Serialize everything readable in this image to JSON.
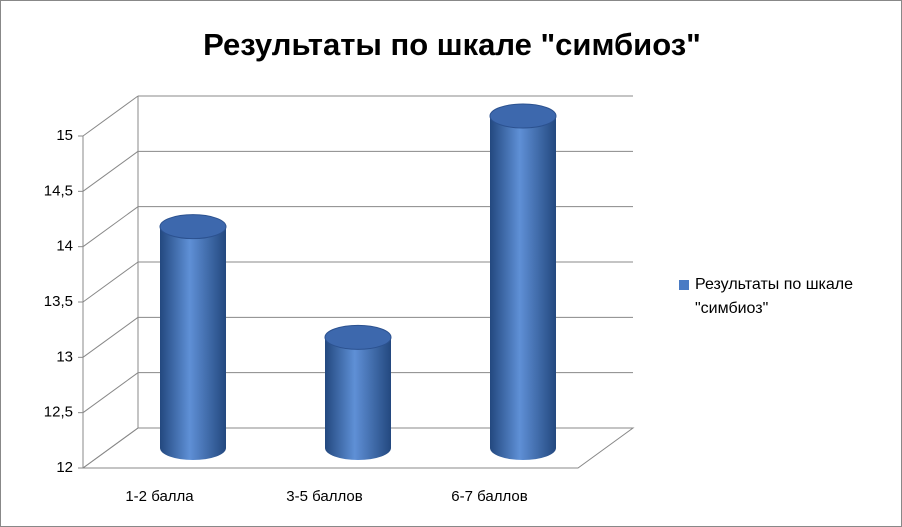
{
  "chart_data": {
    "type": "bar3d",
    "title": "Результаты по шкале \"симбиоз\"",
    "categories": [
      "1-2 балла",
      "3-5 баллов",
      "6-7 баллов"
    ],
    "series": [
      {
        "name": "Результаты по шкале \"симбиоз\"",
        "color": "#4a7bc4",
        "values": [
          14,
          13,
          15
        ]
      }
    ],
    "ylim": [
      12,
      15
    ],
    "yticks": [
      12,
      {
        "value": 12.5,
        "label": "12,5"
      },
      13,
      {
        "value": 13.5,
        "label": "13,5"
      },
      14,
      {
        "value": 14.5,
        "label": "14,5"
      },
      15
    ],
    "grid": true,
    "legend": "right"
  }
}
